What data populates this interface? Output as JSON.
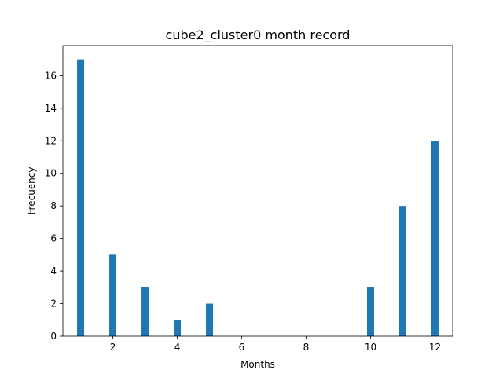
{
  "chart_data": {
    "type": "bar",
    "title": "cube2_cluster0 month record",
    "xlabel": "Months",
    "ylabel": "Frecuency",
    "x": [
      1,
      2,
      3,
      4,
      5,
      6,
      7,
      8,
      9,
      10,
      11,
      12
    ],
    "values": [
      17,
      5,
      3,
      1,
      2,
      0,
      0,
      0,
      0,
      3,
      8,
      12
    ],
    "xlim": [
      0.45,
      12.55
    ],
    "ylim": [
      0,
      17.85
    ],
    "xticks": [
      2,
      4,
      6,
      8,
      10,
      12
    ],
    "yticks": [
      0,
      2,
      4,
      6,
      8,
      10,
      12,
      14,
      16
    ],
    "bar_color": "#1f77b4",
    "grid": false,
    "legend": "none"
  }
}
